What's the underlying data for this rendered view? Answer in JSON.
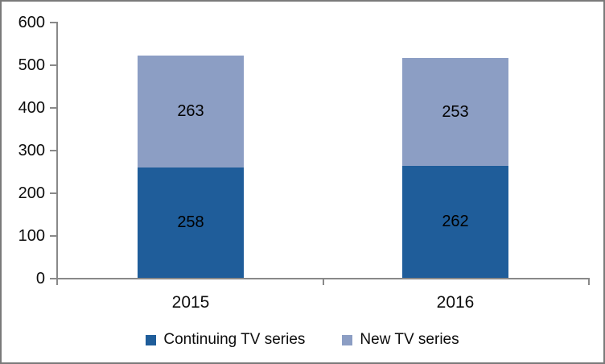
{
  "chart_data": {
    "type": "bar",
    "stacked": true,
    "title": "",
    "categories": [
      "2015",
      "2016"
    ],
    "series": [
      {
        "name": "Continuing TV series",
        "color": "#1F5D9A",
        "values": [
          258,
          262
        ]
      },
      {
        "name": "New TV series",
        "color": "#8C9EC4",
        "values": [
          263,
          253
        ]
      }
    ],
    "ylim": [
      0,
      600
    ],
    "ytick_step": 100,
    "yticks": [
      "0",
      "100",
      "200",
      "300",
      "400",
      "500",
      "600"
    ],
    "data_labels": true,
    "legend_position": "bottom",
    "grid": false
  },
  "colors": {
    "axis": "#898989",
    "frame_border": "#7A7A7A",
    "background": "#FFFFFF",
    "label_text": "#000000"
  }
}
